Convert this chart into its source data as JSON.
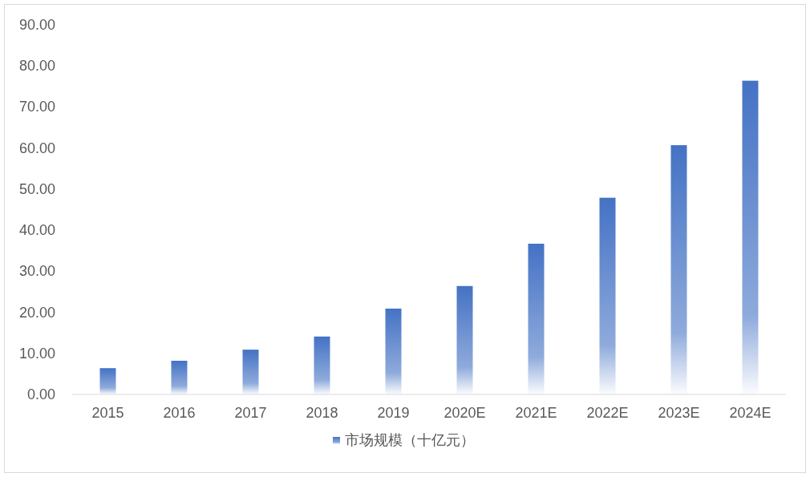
{
  "chart_data": {
    "type": "bar",
    "categories": [
      "2015",
      "2016",
      "2017",
      "2018",
      "2019",
      "2020E",
      "2021E",
      "2022E",
      "2023E",
      "2024E"
    ],
    "series": [
      {
        "name": "市场规模（十亿元）",
        "color": "#4472c4",
        "values": [
          6.4,
          8.2,
          10.9,
          14.1,
          20.9,
          26.4,
          36.7,
          47.9,
          60.7,
          76.4
        ]
      }
    ],
    "ylim": [
      0,
      90
    ],
    "yticks": [
      {
        "value": 0,
        "label": "0.00"
      },
      {
        "value": 10,
        "label": "10.00"
      },
      {
        "value": 20,
        "label": "20.00"
      },
      {
        "value": 30,
        "label": "30.00"
      },
      {
        "value": 40,
        "label": "40.00"
      },
      {
        "value": 50,
        "label": "50.00"
      },
      {
        "value": 60,
        "label": "60.00"
      },
      {
        "value": 70,
        "label": "70.00"
      },
      {
        "value": 80,
        "label": "80.00"
      },
      {
        "value": 90,
        "label": "90.00"
      }
    ],
    "grid": false,
    "legend": "bottom"
  }
}
